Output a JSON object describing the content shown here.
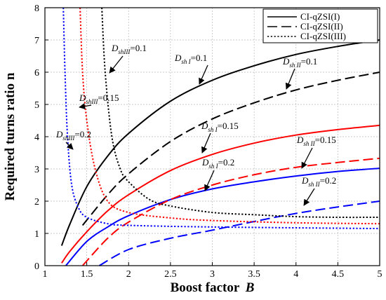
{
  "chart_data": {
    "type": "line",
    "title": "",
    "xlabel": "Boost factor",
    "xlabel_var": "B",
    "ylabel": "Required turns ratio n",
    "xlim": [
      1,
      5
    ],
    "ylim": [
      0,
      8
    ],
    "x_ticks": [
      "1",
      "1.5",
      "2",
      "2.5",
      "3",
      "3.5",
      "4",
      "4.5",
      "5"
    ],
    "y_ticks": [
      "0",
      "1",
      "2",
      "3",
      "4",
      "5",
      "6",
      "7",
      "8"
    ],
    "grid": true,
    "legend_position": "top-right",
    "legend": [
      {
        "label": "CI-qZSI(I)",
        "dash": "solid"
      },
      {
        "label": "CI-qZSI(II)",
        "dash": "dashed"
      },
      {
        "label": "CI-qZSI(III)",
        "dash": "dotted"
      }
    ],
    "series": [
      {
        "converter": "I",
        "D": 0.1,
        "color": "#000000",
        "dash": "solid",
        "points": [
          [
            1.2,
            0.62
          ],
          [
            1.3,
            1.3
          ],
          [
            1.5,
            2.45
          ],
          [
            1.75,
            3.4
          ],
          [
            2,
            4.1
          ],
          [
            2.5,
            5.1
          ],
          [
            3,
            5.75
          ],
          [
            3.5,
            6.2
          ],
          [
            4,
            6.55
          ],
          [
            4.5,
            6.8
          ],
          [
            5,
            7.0
          ]
        ]
      },
      {
        "converter": "I",
        "D": 0.15,
        "color": "#ff0000",
        "dash": "solid",
        "points": [
          [
            1.2,
            0.08
          ],
          [
            1.3,
            0.45
          ],
          [
            1.5,
            1.05
          ],
          [
            1.75,
            1.7
          ],
          [
            2,
            2.2
          ],
          [
            2.5,
            2.95
          ],
          [
            3,
            3.45
          ],
          [
            3.5,
            3.8
          ],
          [
            4,
            4.05
          ],
          [
            4.5,
            4.22
          ],
          [
            5,
            4.35
          ]
        ]
      },
      {
        "converter": "I",
        "D": 0.2,
        "color": "#0000ff",
        "dash": "solid",
        "points": [
          [
            1.25,
            0.0
          ],
          [
            1.5,
            0.75
          ],
          [
            1.75,
            1.2
          ],
          [
            2,
            1.55
          ],
          [
            2.5,
            2.05
          ],
          [
            3,
            2.38
          ],
          [
            3.5,
            2.6
          ],
          [
            4,
            2.78
          ],
          [
            4.5,
            2.92
          ],
          [
            5,
            3.02
          ]
        ]
      },
      {
        "converter": "II",
        "D": 0.1,
        "color": "#000000",
        "dash": "dashed",
        "points": [
          [
            1.45,
            1.25
          ],
          [
            1.75,
            2.2
          ],
          [
            2,
            2.85
          ],
          [
            2.5,
            3.85
          ],
          [
            3,
            4.55
          ],
          [
            3.5,
            5.05
          ],
          [
            4,
            5.45
          ],
          [
            4.5,
            5.75
          ],
          [
            5,
            6.0
          ]
        ]
      },
      {
        "converter": "II",
        "D": 0.15,
        "color": "#ff0000",
        "dash": "dashed",
        "points": [
          [
            1.45,
            0.0
          ],
          [
            1.75,
            0.85
          ],
          [
            2,
            1.35
          ],
          [
            2.5,
            2.05
          ],
          [
            3,
            2.5
          ],
          [
            3.5,
            2.82
          ],
          [
            4,
            3.05
          ],
          [
            4.5,
            3.2
          ],
          [
            5,
            3.33
          ]
        ]
      },
      {
        "converter": "II",
        "D": 0.2,
        "color": "#0000ff",
        "dash": "dashed",
        "points": [
          [
            1.65,
            0.0
          ],
          [
            2,
            0.5
          ],
          [
            2.5,
            0.85
          ],
          [
            3,
            1.1
          ],
          [
            3.5,
            1.37
          ],
          [
            4,
            1.62
          ],
          [
            4.5,
            1.82
          ],
          [
            5,
            2.0
          ]
        ]
      },
      {
        "converter": "III",
        "D": 0.1,
        "color": "#000000",
        "dash": "dotted",
        "points": [
          [
            1.68,
            8.0
          ],
          [
            1.72,
            6.0
          ],
          [
            1.8,
            4.0
          ],
          [
            1.9,
            3.0
          ],
          [
            2,
            2.6
          ],
          [
            2.25,
            2.05
          ],
          [
            2.5,
            1.85
          ],
          [
            3,
            1.65
          ],
          [
            3.5,
            1.58
          ],
          [
            4,
            1.52
          ],
          [
            4.5,
            1.5
          ],
          [
            5,
            1.5
          ]
        ]
      },
      {
        "converter": "III",
        "D": 0.15,
        "color": "#ff0000",
        "dash": "dotted",
        "points": [
          [
            1.42,
            8.0
          ],
          [
            1.45,
            6.0
          ],
          [
            1.5,
            4.5
          ],
          [
            1.6,
            3.0
          ],
          [
            1.75,
            2.0
          ],
          [
            2,
            1.65
          ],
          [
            2.5,
            1.48
          ],
          [
            3,
            1.4
          ],
          [
            4,
            1.33
          ],
          [
            5,
            1.3
          ]
        ]
      },
      {
        "converter": "III",
        "D": 0.2,
        "color": "#0000ff",
        "dash": "dotted",
        "points": [
          [
            1.22,
            8.0
          ],
          [
            1.24,
            6.0
          ],
          [
            1.27,
            4.0
          ],
          [
            1.32,
            2.5
          ],
          [
            1.4,
            1.8
          ],
          [
            1.5,
            1.5
          ],
          [
            1.75,
            1.3
          ],
          [
            2,
            1.25
          ],
          [
            3,
            1.2
          ],
          [
            5,
            1.15
          ]
        ]
      }
    ],
    "annotations": [
      {
        "main": "D",
        "sub": "shIII",
        "value": "=0.1"
      },
      {
        "main": "D",
        "sub": "sh I",
        "value": "=0.1"
      },
      {
        "main": "D",
        "sub": "sh II",
        "value": "=0.1"
      },
      {
        "main": "D",
        "sub": "shIII",
        "value": "=0.15"
      },
      {
        "main": "D",
        "sub": "shIII",
        "value": "=0.2"
      },
      {
        "main": "D",
        "sub": "sh I",
        "value": "=0.15"
      },
      {
        "main": "D",
        "sub": "sh II",
        "value": "=0.15"
      },
      {
        "main": "D",
        "sub": "sh I",
        "value": "=0.2"
      },
      {
        "main": "D",
        "sub": "sh II",
        "value": "=0.2"
      }
    ]
  }
}
